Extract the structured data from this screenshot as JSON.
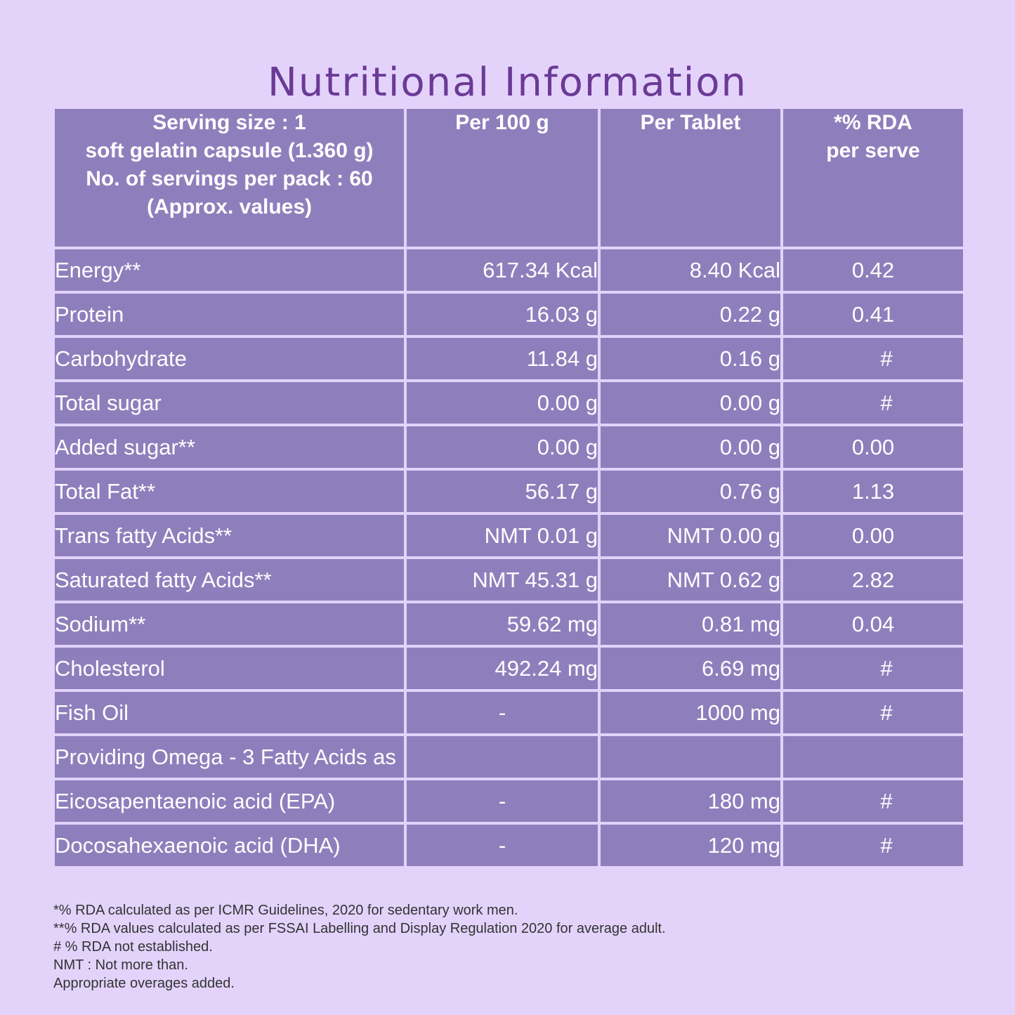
{
  "title": "Nutritional Information",
  "header": {
    "serving_lines": [
      "Serving size : 1",
      "soft gelatin capsule (1.360 g)",
      "No. of servings per pack : 60",
      "(Approx. values)"
    ],
    "per100": "Per 100 g",
    "per_tablet": "Per Tablet",
    "rda_lines": [
      "*% RDA",
      "per serve"
    ]
  },
  "rows": [
    {
      "nutrient": "Energy**",
      "per100": "617.34 Kcal",
      "per_tablet": "8.40 Kcal",
      "rda": "0.42"
    },
    {
      "nutrient": "Protein",
      "per100": "16.03 g",
      "per_tablet": "0.22 g",
      "rda": "0.41"
    },
    {
      "nutrient": "Carbohydrate",
      "per100": "11.84 g",
      "per_tablet": "0.16 g",
      "rda": "#"
    },
    {
      "nutrient": "Total sugar",
      "per100": "0.00 g",
      "per_tablet": "0.00 g",
      "rda": "#"
    },
    {
      "nutrient": "Added sugar**",
      "per100": "0.00 g",
      "per_tablet": "0.00 g",
      "rda": "0.00"
    },
    {
      "nutrient": "Total Fat**",
      "per100": "56.17 g",
      "per_tablet": "0.76 g",
      "rda": "1.13"
    },
    {
      "nutrient": "Trans fatty Acids**",
      "per100": "NMT 0.01 g",
      "per_tablet": "NMT 0.00 g",
      "rda": "0.00"
    },
    {
      "nutrient": "Saturated fatty Acids**",
      "per100": "NMT 45.31 g",
      "per_tablet": "NMT 0.62 g",
      "rda": "2.82"
    },
    {
      "nutrient": "Sodium**",
      "per100": "59.62 mg",
      "per_tablet": "0.81 mg",
      "rda": "0.04"
    },
    {
      "nutrient": "Cholesterol",
      "per100": "492.24 mg",
      "per_tablet": "6.69 mg",
      "rda": "#"
    },
    {
      "nutrient": "Fish Oil",
      "per100": "-",
      "per_tablet": "1000 mg",
      "rda": "#"
    },
    {
      "nutrient": "Providing Omega - 3 Fatty Acids as",
      "per100": "",
      "per_tablet": "",
      "rda": ""
    },
    {
      "nutrient": "Eicosapentaenoic acid (EPA)",
      "per100": "-",
      "per_tablet": "180 mg",
      "rda": "#"
    },
    {
      "nutrient": "Docosahexaenoic acid (DHA)",
      "per100": "-",
      "per_tablet": "120 mg",
      "rda": "#"
    }
  ],
  "notes": [
    "*% RDA calculated as per ICMR Guidelines, 2020 for sedentary work men.",
    "**% RDA values calculated as per FSSAI Labelling and Display Regulation 2020 for average adult.",
    "# % RDA not established.",
    "NMT : Not more than.",
    "Appropriate overages added."
  ],
  "colors": {
    "background": "#e3d3fb",
    "cell": "#8e7fbc",
    "title": "#6b3a96",
    "text": "#ffffff"
  }
}
